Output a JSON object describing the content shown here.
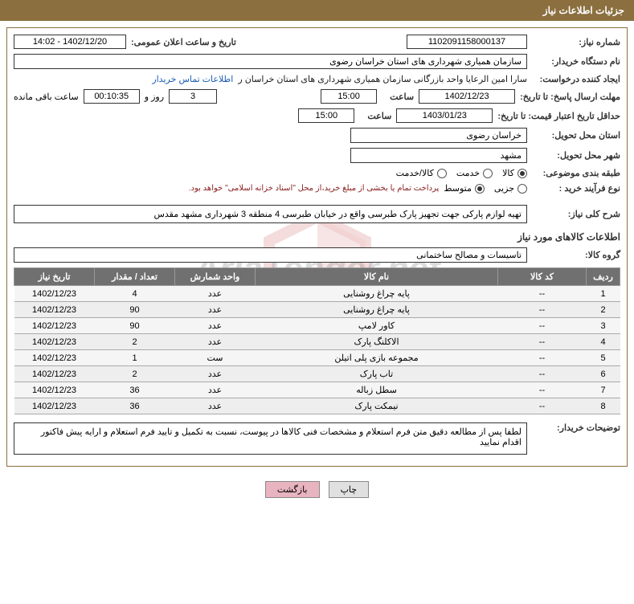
{
  "header": {
    "title": "جزئیات اطلاعات نیاز"
  },
  "fields": {
    "need_no_label": "شماره نیاز:",
    "need_no": "1102091158000137",
    "announce_label": "تاریخ و ساعت اعلان عمومی:",
    "announce_value": "1402/12/20 - 14:02",
    "buyer_org_label": "نام دستگاه خریدار:",
    "buyer_org": "سازمان همیاری شهرداری های استان خراسان رضوی",
    "requester_label": "ایجاد کننده درخواست:",
    "requester": "سارا امین الرعایا واحد بازرگانی سازمان همیاری شهرداری های استان خراسان ر",
    "contact_link": "اطلاعات تماس خریدار",
    "deadline_label": "مهلت ارسال پاسخ: تا تاریخ:",
    "deadline_date": "1402/12/23",
    "time_label": "ساعت",
    "deadline_time": "15:00",
    "remaining_days": "3",
    "days_and": "روز و",
    "remaining_time": "00:10:35",
    "remaining_label": "ساعت باقی مانده",
    "validity_label": "حداقل تاریخ اعتبار قیمت: تا تاریخ:",
    "validity_date": "1403/01/23",
    "validity_time": "15:00",
    "delivery_province_label": "استان محل تحویل:",
    "delivery_province": "خراسان رضوی",
    "delivery_city_label": "شهر محل تحویل:",
    "delivery_city": "مشهد",
    "subject_class_label": "طبقه بندی موضوعی:",
    "subject_options": {
      "goods": "کالا",
      "service": "خدمت",
      "goods_service": "کالا/خدمت"
    },
    "subject_selected": "goods",
    "purchase_type_label": "نوع فرآیند خرید :",
    "purchase_options": {
      "minor": "جزیی",
      "medium": "متوسط"
    },
    "purchase_selected": "medium",
    "purchase_note": "پرداخت تمام یا بخشی از مبلغ خرید،از محل \"اسناد خزانه اسلامی\" خواهد بود.",
    "general_desc_label": "شرح کلی نیاز:",
    "general_desc": "تهیه لوازم پارکی جهت تجهیز پارک طبرسی واقع در خیابان طبرسی 4 منطقه 3 شهرداری مشهد مقدس",
    "goods_info_title": "اطلاعات کالاهای مورد نیاز",
    "goods_group_label": "گروه کالا:",
    "goods_group": "تاسیسات و مصالح ساختمانی",
    "buyer_notes_label": "توضیحات خریدار:",
    "buyer_notes": "لطفا پس از مطالعه دقیق متن فرم استعلام و مشخصات فنی کالاها در پیوست، نسبت به تکمیل و تایید فرم استعلام و ارایه پیش فاکتور اقدام نمایید"
  },
  "table": {
    "headers": {
      "row": "ردیف",
      "code": "کد کالا",
      "name": "نام کالا",
      "unit": "واحد شمارش",
      "qty": "تعداد / مقدار",
      "date": "تاریخ نیاز"
    },
    "rows": [
      {
        "row": "1",
        "code": "--",
        "name": "پایه چراغ روشنایی",
        "unit": "عدد",
        "qty": "4",
        "date": "1402/12/23"
      },
      {
        "row": "2",
        "code": "--",
        "name": "پایه چراغ روشنایی",
        "unit": "عدد",
        "qty": "90",
        "date": "1402/12/23"
      },
      {
        "row": "3",
        "code": "--",
        "name": "کاور لامپ",
        "unit": "عدد",
        "qty": "90",
        "date": "1402/12/23"
      },
      {
        "row": "4",
        "code": "--",
        "name": "الاکلنگ پارک",
        "unit": "عدد",
        "qty": "2",
        "date": "1402/12/23"
      },
      {
        "row": "5",
        "code": "--",
        "name": "مجموعه بازی پلی اتیلن",
        "unit": "ست",
        "qty": "1",
        "date": "1402/12/23"
      },
      {
        "row": "6",
        "code": "--",
        "name": "تاب پارک",
        "unit": "عدد",
        "qty": "2",
        "date": "1402/12/23"
      },
      {
        "row": "7",
        "code": "--",
        "name": "سطل زباله",
        "unit": "عدد",
        "qty": "36",
        "date": "1402/12/23"
      },
      {
        "row": "8",
        "code": "--",
        "name": "نیمکت پارک",
        "unit": "عدد",
        "qty": "36",
        "date": "1402/12/23"
      }
    ]
  },
  "buttons": {
    "print": "چاپ",
    "back": "بازگشت"
  },
  "watermark_text": "AriaTender.net"
}
